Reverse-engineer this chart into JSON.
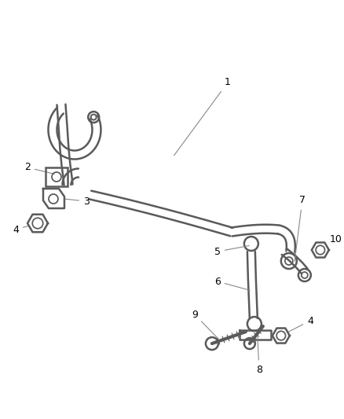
{
  "background_color": "#ffffff",
  "line_color": "#5a5a5a",
  "bar_lw": 1.8,
  "label_fontsize": 9,
  "figsize": [
    4.38,
    5.33
  ],
  "dpi": 100
}
